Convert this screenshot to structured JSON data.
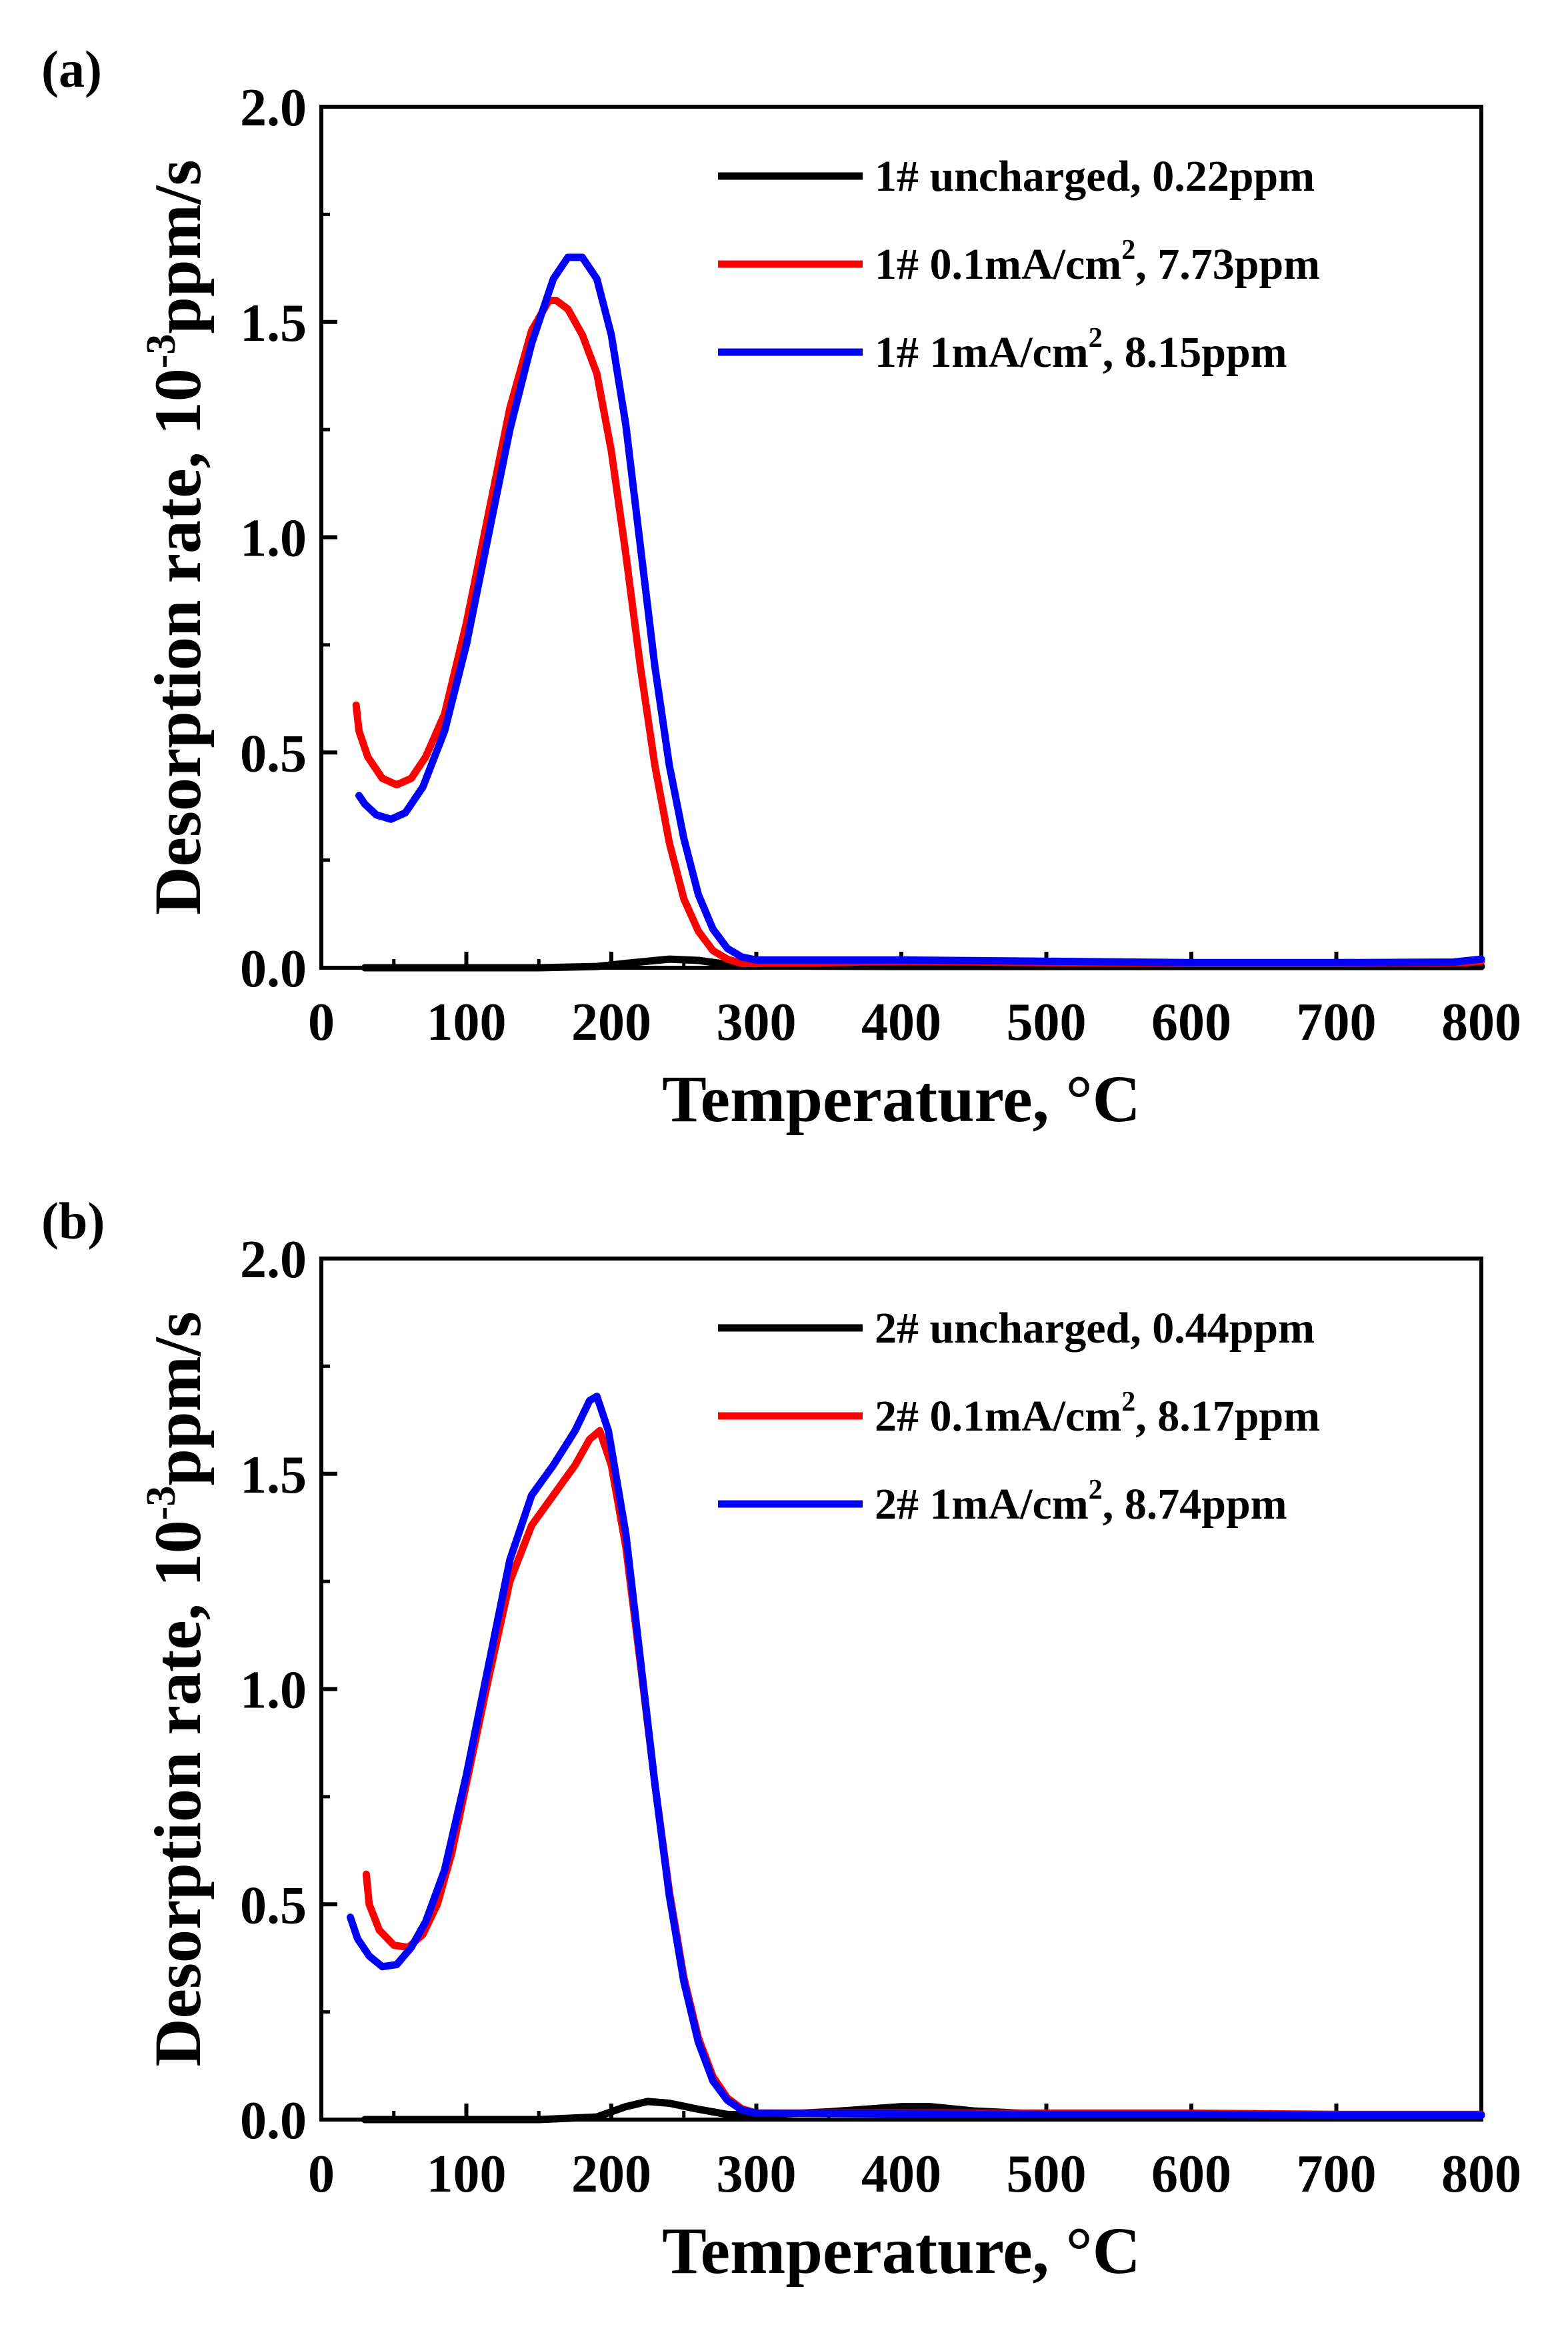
{
  "chart_data": [
    {
      "panel_label": "(a)",
      "type": "line",
      "xlabel": "Temperature, °C",
      "ylabel_main": "Desorption rate, 10",
      "ylabel_sup": "-3",
      "ylabel_unit": "ppm/s",
      "xlim": [
        0,
        800
      ],
      "ylim": [
        0,
        2.0
      ],
      "xticks": [
        "0",
        "100",
        "200",
        "300",
        "400",
        "500",
        "600",
        "700",
        "800"
      ],
      "yticks": [
        "0.0",
        "0.5",
        "1.0",
        "1.5",
        "2.0"
      ],
      "legend_position": "top-right",
      "series": [
        {
          "name": "1# uncharged, 0.22ppm",
          "label_main": "1# uncharged, 0.22ppm",
          "label_sup": "",
          "label_tail": "",
          "color": "#000000",
          "points": [
            [
              30,
              0.0
            ],
            [
              100,
              0.0
            ],
            [
              150,
              0.0
            ],
            [
              190,
              0.003
            ],
            [
              215,
              0.012
            ],
            [
              240,
              0.02
            ],
            [
              260,
              0.017
            ],
            [
              280,
              0.008
            ],
            [
              300,
              0.004
            ],
            [
              400,
              0.003
            ],
            [
              600,
              0.003
            ],
            [
              800,
              0.003
            ]
          ]
        },
        {
          "name": "1# 0.1mA/cm2, 7.73ppm",
          "label_main": "1#  0.1mA/cm",
          "label_sup": "2",
          "label_tail": ", 7.73ppm",
          "color": "#ff0000",
          "points": [
            [
              24,
              0.61
            ],
            [
              26,
              0.55
            ],
            [
              32,
              0.49
            ],
            [
              42,
              0.44
            ],
            [
              52,
              0.425
            ],
            [
              62,
              0.44
            ],
            [
              72,
              0.49
            ],
            [
              85,
              0.59
            ],
            [
              100,
              0.8
            ],
            [
              115,
              1.05
            ],
            [
              130,
              1.3
            ],
            [
              145,
              1.48
            ],
            [
              157,
              1.55
            ],
            [
              162,
              1.55
            ],
            [
              170,
              1.53
            ],
            [
              180,
              1.47
            ],
            [
              190,
              1.38
            ],
            [
              200,
              1.2
            ],
            [
              210,
              0.96
            ],
            [
              220,
              0.7
            ],
            [
              230,
              0.47
            ],
            [
              240,
              0.29
            ],
            [
              250,
              0.16
            ],
            [
              260,
              0.085
            ],
            [
              270,
              0.04
            ],
            [
              280,
              0.02
            ],
            [
              290,
              0.01
            ],
            [
              300,
              0.01
            ],
            [
              350,
              0.012
            ],
            [
              400,
              0.015
            ],
            [
              500,
              0.012
            ],
            [
              600,
              0.01
            ],
            [
              700,
              0.01
            ],
            [
              790,
              0.012
            ],
            [
              800,
              0.015
            ]
          ]
        },
        {
          "name": "1# 1mA/cm2, 8.15ppm",
          "label_main": "1#  1mA/cm",
          "label_sup": "2",
          "label_tail": ", 8.15ppm",
          "color": "#0000ff",
          "points": [
            [
              26,
              0.4
            ],
            [
              30,
              0.38
            ],
            [
              38,
              0.355
            ],
            [
              48,
              0.345
            ],
            [
              58,
              0.36
            ],
            [
              70,
              0.42
            ],
            [
              85,
              0.55
            ],
            [
              100,
              0.75
            ],
            [
              115,
              1.0
            ],
            [
              130,
              1.25
            ],
            [
              145,
              1.45
            ],
            [
              160,
              1.6
            ],
            [
              170,
              1.65
            ],
            [
              180,
              1.65
            ],
            [
              190,
              1.6
            ],
            [
              200,
              1.47
            ],
            [
              210,
              1.26
            ],
            [
              220,
              0.98
            ],
            [
              230,
              0.7
            ],
            [
              240,
              0.47
            ],
            [
              250,
              0.3
            ],
            [
              260,
              0.17
            ],
            [
              270,
              0.09
            ],
            [
              280,
              0.045
            ],
            [
              290,
              0.025
            ],
            [
              300,
              0.018
            ],
            [
              350,
              0.018
            ],
            [
              400,
              0.018
            ],
            [
              500,
              0.015
            ],
            [
              600,
              0.012
            ],
            [
              700,
              0.012
            ],
            [
              780,
              0.013
            ],
            [
              800,
              0.02
            ]
          ]
        }
      ]
    },
    {
      "panel_label": "(b)",
      "type": "line",
      "xlabel": "Temperature, °C",
      "ylabel_main": "Desorption rate, 10",
      "ylabel_sup": "-3",
      "ylabel_unit": "ppm/s",
      "xlim": [
        0,
        800
      ],
      "ylim": [
        0,
        2.0
      ],
      "xticks": [
        "0",
        "100",
        "200",
        "300",
        "400",
        "500",
        "600",
        "700",
        "800"
      ],
      "yticks": [
        "0.0",
        "0.5",
        "1.0",
        "1.5",
        "2.0"
      ],
      "legend_position": "top-right",
      "series": [
        {
          "name": "2# uncharged, 0.44ppm",
          "label_main": "2# uncharged, 0.44ppm",
          "label_sup": "",
          "label_tail": "",
          "color": "#000000",
          "points": [
            [
              30,
              0.0
            ],
            [
              150,
              0.0
            ],
            [
              190,
              0.006
            ],
            [
              210,
              0.03
            ],
            [
              225,
              0.042
            ],
            [
              240,
              0.038
            ],
            [
              260,
              0.024
            ],
            [
              280,
              0.012
            ],
            [
              300,
              0.01
            ],
            [
              350,
              0.018
            ],
            [
              400,
              0.03
            ],
            [
              420,
              0.03
            ],
            [
              450,
              0.02
            ],
            [
              500,
              0.012
            ],
            [
              600,
              0.01
            ],
            [
              800,
              0.01
            ]
          ]
        },
        {
          "name": "2# 0.1mA/cm2, 8.17ppm",
          "label_main": "2#  0.1mA/cm",
          "label_sup": "2",
          "label_tail": ", 8.17ppm",
          "color": "#ff0000",
          "points": [
            [
              31,
              0.57
            ],
            [
              33,
              0.5
            ],
            [
              40,
              0.44
            ],
            [
              50,
              0.405
            ],
            [
              60,
              0.4
            ],
            [
              70,
              0.43
            ],
            [
              80,
              0.5
            ],
            [
              90,
              0.62
            ],
            [
              100,
              0.78
            ],
            [
              115,
              1.02
            ],
            [
              130,
              1.25
            ],
            [
              145,
              1.38
            ],
            [
              160,
              1.45
            ],
            [
              175,
              1.52
            ],
            [
              185,
              1.58
            ],
            [
              192,
              1.6
            ],
            [
              200,
              1.52
            ],
            [
              210,
              1.33
            ],
            [
              220,
              1.06
            ],
            [
              230,
              0.78
            ],
            [
              240,
              0.53
            ],
            [
              250,
              0.33
            ],
            [
              260,
              0.19
            ],
            [
              270,
              0.1
            ],
            [
              280,
              0.05
            ],
            [
              290,
              0.025
            ],
            [
              300,
              0.015
            ],
            [
              400,
              0.015
            ],
            [
              500,
              0.015
            ],
            [
              600,
              0.015
            ],
            [
              700,
              0.012
            ],
            [
              800,
              0.012
            ]
          ]
        },
        {
          "name": "2# 1mA/cm2, 8.74ppm",
          "label_main": "2#  1mA/cm",
          "label_sup": "2",
          "label_tail": ", 8.74ppm",
          "color": "#0000ff",
          "points": [
            [
              20,
              0.47
            ],
            [
              25,
              0.42
            ],
            [
              33,
              0.38
            ],
            [
              42,
              0.355
            ],
            [
              52,
              0.36
            ],
            [
              62,
              0.4
            ],
            [
              72,
              0.46
            ],
            [
              85,
              0.58
            ],
            [
              100,
              0.8
            ],
            [
              115,
              1.05
            ],
            [
              130,
              1.3
            ],
            [
              145,
              1.45
            ],
            [
              160,
              1.52
            ],
            [
              175,
              1.6
            ],
            [
              185,
              1.67
            ],
            [
              190,
              1.68
            ],
            [
              198,
              1.6
            ],
            [
              210,
              1.36
            ],
            [
              220,
              1.07
            ],
            [
              230,
              0.78
            ],
            [
              240,
              0.52
            ],
            [
              250,
              0.32
            ],
            [
              260,
              0.18
            ],
            [
              270,
              0.09
            ],
            [
              280,
              0.045
            ],
            [
              290,
              0.022
            ],
            [
              300,
              0.015
            ],
            [
              400,
              0.013
            ],
            [
              500,
              0.012
            ],
            [
              600,
              0.012
            ],
            [
              700,
              0.01
            ],
            [
              800,
              0.01
            ]
          ]
        }
      ]
    }
  ]
}
